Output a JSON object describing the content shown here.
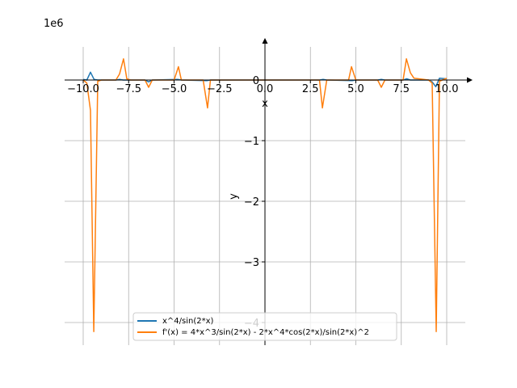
{
  "chart_data": {
    "type": "line",
    "title": "",
    "xlabel": "x",
    "ylabel": "y",
    "y_scale_label": "1e6",
    "xlim": [
      -11,
      11
    ],
    "ylim": [
      -4.4,
      0.55
    ],
    "grid": true,
    "x_ticks": [
      -10,
      -7.5,
      -5,
      -2.5,
      0,
      2.5,
      5,
      7.5,
      10
    ],
    "x_tick_labels": [
      "−10.0",
      "−7.5",
      "−5.0",
      "−2.5",
      "0.0",
      "2.5",
      "5.0",
      "7.5",
      "10.0"
    ],
    "y_ticks": [
      0,
      -1,
      -2,
      -3,
      -4
    ],
    "y_tick_labels": [
      "0",
      "−1",
      "−2",
      "−3",
      "−4"
    ],
    "legend_position": "lower-center",
    "series": [
      {
        "name": "x^4/sin(2*x)",
        "color": "#1f77b4",
        "points": [
          [
            -10,
            0.01
          ],
          [
            -9.8,
            0.0
          ],
          [
            -9.6,
            0.13
          ],
          [
            -9.4,
            0.01
          ],
          [
            -9.2,
            0.0
          ],
          [
            -8.2,
            0.0
          ],
          [
            -8.0,
            0.01
          ],
          [
            -7.8,
            0.0
          ],
          [
            -7.6,
            0.0
          ],
          [
            -6.6,
            0.0
          ],
          [
            -6.4,
            -0.03
          ],
          [
            -6.2,
            0.0
          ],
          [
            -4.8,
            0.01
          ],
          [
            -4.6,
            0.0
          ],
          [
            -3.2,
            -0.01
          ],
          [
            -3.0,
            0.0
          ],
          [
            0,
            0.0
          ],
          [
            3.0,
            0.0
          ],
          [
            3.2,
            0.01
          ],
          [
            3.4,
            0.0
          ],
          [
            4.8,
            -0.01
          ],
          [
            5.0,
            0.0
          ],
          [
            6.2,
            0.0
          ],
          [
            6.4,
            0.01
          ],
          [
            6.6,
            0.0
          ],
          [
            7.6,
            0.0
          ],
          [
            7.8,
            0.02
          ],
          [
            8.0,
            0.0
          ],
          [
            9.0,
            0.0
          ],
          [
            9.2,
            -0.03
          ],
          [
            9.4,
            -0.11
          ],
          [
            9.6,
            0.03
          ],
          [
            10,
            0.02
          ]
        ]
      },
      {
        "name": "f'(x) = 4*x^3/sin(2*x) - 2*x^4*cos(2*x)/sin(2*x)^2",
        "color": "#ff7f0e",
        "points": [
          [
            -10,
            0.0
          ],
          [
            -9.8,
            -0.05
          ],
          [
            -9.6,
            -0.5
          ],
          [
            -9.42,
            -4.15
          ],
          [
            -9.2,
            -0.02
          ],
          [
            -9.0,
            0.0
          ],
          [
            -8.2,
            0.0
          ],
          [
            -8.0,
            0.1
          ],
          [
            -7.78,
            0.35
          ],
          [
            -7.6,
            0.02
          ],
          [
            -7.4,
            0.0
          ],
          [
            -6.6,
            0.0
          ],
          [
            -6.4,
            -0.12
          ],
          [
            -6.2,
            0.0
          ],
          [
            -5.0,
            0.0
          ],
          [
            -4.76,
            0.22
          ],
          [
            -4.6,
            0.0
          ],
          [
            -3.4,
            0.0
          ],
          [
            -3.16,
            -0.46
          ],
          [
            -3.0,
            0.0
          ],
          [
            0,
            0.0
          ],
          [
            3.0,
            0.0
          ],
          [
            3.16,
            -0.46
          ],
          [
            3.4,
            0.0
          ],
          [
            4.6,
            0.0
          ],
          [
            4.76,
            0.22
          ],
          [
            5.0,
            0.0
          ],
          [
            6.2,
            0.0
          ],
          [
            6.4,
            -0.12
          ],
          [
            6.6,
            0.0
          ],
          [
            7.6,
            0.0
          ],
          [
            7.78,
            0.35
          ],
          [
            8.0,
            0.12
          ],
          [
            8.2,
            0.03
          ],
          [
            9.0,
            0.0
          ],
          [
            9.2,
            -0.05
          ],
          [
            9.42,
            -4.15
          ],
          [
            9.6,
            -0.02
          ],
          [
            10,
            0.03
          ]
        ]
      }
    ]
  }
}
